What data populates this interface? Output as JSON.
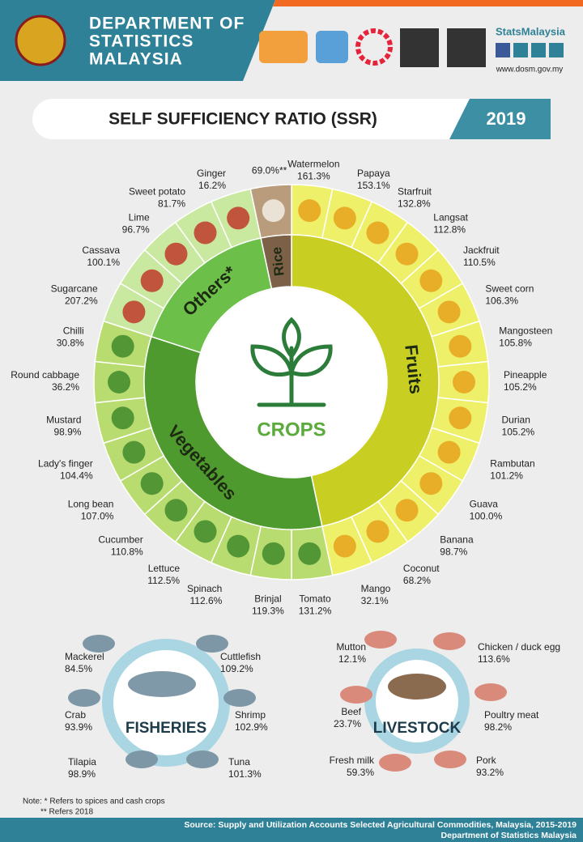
{
  "header": {
    "title_lines": [
      "DEPARTMENT OF",
      "STATISTICS",
      "MALAYSIA"
    ],
    "brand": "StatsMalaysia",
    "website": "www.dosm.gov.my"
  },
  "banner": {
    "title": "SELF SUFFICIENCY RATIO (SSR)",
    "year": "2019"
  },
  "crops": {
    "label": "CROPS",
    "groups": [
      {
        "name": "Fruits",
        "items": [
          {
            "name": "Watermelon",
            "value": "161.3%"
          },
          {
            "name": "Papaya",
            "value": "153.1%"
          },
          {
            "name": "Starfruit",
            "value": "132.8%"
          },
          {
            "name": "Langsat",
            "value": "112.8%"
          },
          {
            "name": "Jackfruit",
            "value": "110.5%"
          },
          {
            "name": "Sweet corn",
            "value": "106.3%"
          },
          {
            "name": "Mangosteen",
            "value": "105.8%"
          },
          {
            "name": "Pineapple",
            "value": "105.2%"
          },
          {
            "name": "Durian",
            "value": "105.2%"
          },
          {
            "name": "Rambutan",
            "value": "101.2%"
          },
          {
            "name": "Guava",
            "value": "100.0%"
          },
          {
            "name": "Banana",
            "value": "98.7%"
          },
          {
            "name": "Coconut",
            "value": "68.2%"
          },
          {
            "name": "Mango",
            "value": "32.1%"
          }
        ]
      },
      {
        "name": "Vegetables",
        "items": [
          {
            "name": "Tomato",
            "value": "131.2%"
          },
          {
            "name": "Brinjal",
            "value": "119.3%"
          },
          {
            "name": "Spinach",
            "value": "112.6%"
          },
          {
            "name": "Lettuce",
            "value": "112.5%"
          },
          {
            "name": "Cucumber",
            "value": "110.8%"
          },
          {
            "name": "Long bean",
            "value": "107.0%"
          },
          {
            "name": "Lady's finger",
            "value": "104.4%"
          },
          {
            "name": "Mustard",
            "value": "98.9%"
          },
          {
            "name": "Round cabbage",
            "value": "36.2%"
          },
          {
            "name": "Chilli",
            "value": "30.8%"
          }
        ]
      },
      {
        "name": "Others*",
        "items": [
          {
            "name": "Sugarcane",
            "value": "207.2%"
          },
          {
            "name": "Cassava",
            "value": "100.1%"
          },
          {
            "name": "Lime",
            "value": "96.7%"
          },
          {
            "name": "Sweet potato",
            "value": "81.7%"
          },
          {
            "name": "Ginger",
            "value": "16.2%"
          }
        ]
      },
      {
        "name": "Rice",
        "items": [
          {
            "name": "",
            "value": "69.0%**"
          }
        ]
      }
    ]
  },
  "fisheries": {
    "label": "FISHERIES",
    "items": [
      {
        "name": "Mackerel",
        "value": "84.5%"
      },
      {
        "name": "Cuttlefish",
        "value": "109.2%"
      },
      {
        "name": "Crab",
        "value": "93.9%"
      },
      {
        "name": "Shrimp",
        "value": "102.9%"
      },
      {
        "name": "Tilapia",
        "value": "98.9%"
      },
      {
        "name": "Tuna",
        "value": "101.3%"
      }
    ]
  },
  "livestock": {
    "label": "LIVESTOCK",
    "items": [
      {
        "name": "Mutton",
        "value": "12.1%"
      },
      {
        "name": "Chicken / duck egg",
        "value": "113.6%"
      },
      {
        "name": "Beef",
        "value": "23.7%"
      },
      {
        "name": "Poultry meat",
        "value": "98.2%"
      },
      {
        "name": "Fresh milk",
        "value": "59.3%"
      },
      {
        "name": "Pork",
        "value": "93.2%"
      }
    ]
  },
  "notes": [
    "Note: * Refers to spices and cash crops",
    "** Refers 2018"
  ],
  "source": [
    "Source: Supply and Utilization Accounts Selected Agricultural Commodities, Malaysia, 2015-2019",
    "Department of Statistics Malaysia"
  ]
}
